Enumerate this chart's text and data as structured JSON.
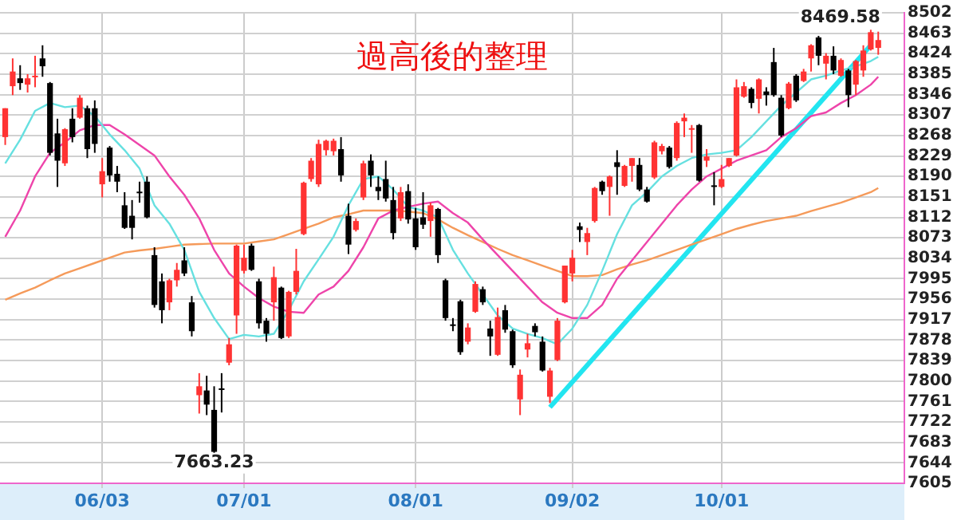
{
  "chart_data": {
    "type": "candlestick",
    "title": "過高後的整理",
    "categories": [
      null,
      null,
      null,
      null,
      null,
      null,
      null,
      null,
      null,
      null,
      null,
      null,
      null,
      "06/03",
      null,
      null,
      null,
      null,
      null,
      null,
      null,
      null,
      null,
      null,
      null,
      null,
      null,
      null,
      null,
      null,
      null,
      null,
      "07/01",
      null,
      null,
      null,
      null,
      null,
      null,
      null,
      null,
      null,
      null,
      null,
      null,
      null,
      null,
      null,
      null,
      null,
      null,
      null,
      null,
      null,
      null,
      "08/01",
      null,
      null,
      null,
      null,
      null,
      null,
      null,
      null,
      null,
      null,
      null,
      null,
      null,
      null,
      null,
      null,
      null,
      null,
      null,
      null,
      "09/02",
      null,
      null,
      null,
      null,
      null,
      null,
      null,
      null,
      null,
      null,
      null,
      null,
      null,
      null,
      null,
      null,
      null,
      null,
      null,
      "10/01",
      null,
      null,
      null,
      null,
      null,
      null,
      null,
      null,
      null,
      null,
      null,
      null,
      null,
      null,
      null,
      null,
      null,
      null,
      null,
      null,
      null
    ],
    "ohlc": [
      [
        8265,
        8320,
        8250,
        8320
      ],
      [
        8362,
        8415,
        8345,
        8390
      ],
      [
        8377,
        8402,
        8355,
        8368
      ],
      [
        8365,
        8385,
        8350,
        8377
      ],
      [
        8379,
        8420,
        8360,
        8382
      ],
      [
        8415,
        8440,
        8380,
        8400
      ],
      [
        8368,
        8370,
        8230,
        8235
      ],
      [
        8272,
        8300,
        8170,
        8220
      ],
      [
        8215,
        8282,
        8210,
        8280
      ],
      [
        8300,
        8320,
        8255,
        8265
      ],
      [
        8302,
        8345,
        8300,
        8340
      ],
      [
        8320,
        8325,
        8225,
        8242
      ],
      [
        8320,
        8335,
        8235,
        8252
      ],
      [
        8175,
        8225,
        8150,
        8200
      ],
      [
        8245,
        8248,
        8180,
        8192
      ],
      [
        8195,
        8210,
        8160,
        8180
      ],
      [
        8135,
        8160,
        8090,
        8092
      ],
      [
        8115,
        8145,
        8070,
        8092
      ],
      [
        8161,
        8180,
        8140,
        8159
      ],
      [
        8180,
        8190,
        8110,
        8112
      ],
      [
        8040,
        8055,
        7940,
        7945
      ],
      [
        7990,
        8005,
        7910,
        7935
      ],
      [
        7950,
        7995,
        7935,
        7992
      ],
      [
        7992,
        8025,
        7980,
        8012
      ],
      [
        8030,
        8055,
        8000,
        8005
      ],
      [
        7950,
        7962,
        7885,
        7895
      ],
      [
        7773,
        7815,
        7738,
        7790
      ],
      [
        7782,
        7810,
        7735,
        7755
      ],
      [
        7745,
        7790,
        7663.23,
        7665
      ],
      [
        7786,
        7815,
        7740,
        7784
      ],
      [
        7835,
        7882,
        7830,
        7870
      ],
      [
        7925,
        8060,
        7890,
        8058
      ],
      [
        8010,
        8060,
        8005,
        8035
      ],
      [
        8058,
        8062,
        8010,
        8012
      ],
      [
        7990,
        7995,
        7900,
        7910
      ],
      [
        7915,
        7920,
        7875,
        7890
      ],
      [
        7950,
        8018,
        7915,
        7998
      ],
      [
        7978,
        7980,
        7880,
        7882
      ],
      [
        7885,
        7972,
        7882,
        7970
      ],
      [
        7970,
        8052,
        7965,
        8010
      ],
      [
        8080,
        8180,
        8078,
        8178
      ],
      [
        8185,
        8225,
        8180,
        8220
      ],
      [
        8175,
        8260,
        8170,
        8252
      ],
      [
        8240,
        8260,
        8230,
        8258
      ],
      [
        8238,
        8262,
        8230,
        8258
      ],
      [
        8242,
        8265,
        8180,
        8192
      ],
      [
        8115,
        8138,
        8042,
        8060
      ],
      [
        8088,
        8110,
        8085,
        8105
      ],
      [
        8150,
        8220,
        8145,
        8215
      ],
      [
        8220,
        8232,
        8170,
        8192
      ],
      [
        8170,
        8190,
        8145,
        8162
      ],
      [
        8185,
        8220,
        8142,
        8148
      ],
      [
        8145,
        8170,
        8070,
        8082
      ],
      [
        8110,
        8170,
        8105,
        8160
      ],
      [
        8162,
        8175,
        8100,
        8108
      ],
      [
        8110,
        8130,
        8050,
        8055
      ],
      [
        8112,
        8160,
        8090,
        8098
      ],
      [
        8105,
        8140,
        8075,
        8135
      ],
      [
        8128,
        8130,
        8025,
        8040
      ],
      [
        7992,
        7995,
        7915,
        7920
      ],
      [
        7908,
        7920,
        7895,
        7906
      ],
      [
        7952,
        7955,
        7850,
        7855
      ],
      [
        7875,
        7910,
        7870,
        7902
      ],
      [
        7932,
        7990,
        7930,
        7985
      ],
      [
        7975,
        7980,
        7945,
        7950
      ],
      [
        7900,
        7915,
        7848,
        7885
      ],
      [
        7850,
        7940,
        7848,
        7922
      ],
      [
        7935,
        7945,
        7892,
        7898
      ],
      [
        7895,
        7898,
        7825,
        7830
      ],
      [
        7765,
        7822,
        7735,
        7812
      ],
      [
        7860,
        7890,
        7845,
        7872
      ],
      [
        7905,
        7910,
        7885,
        7893
      ],
      [
        7875,
        7885,
        7818,
        7820
      ],
      [
        7770,
        7825,
        7758,
        7820
      ],
      [
        7840,
        7920,
        7838,
        7915
      ],
      [
        7950,
        8020,
        7948,
        8020
      ],
      [
        8005,
        8050,
        7990,
        8035
      ],
      [
        8095,
        8102,
        8065,
        8088
      ],
      [
        8065,
        8092,
        8040,
        8082
      ],
      [
        8105,
        8170,
        8102,
        8168
      ],
      [
        8180,
        8182,
        8155,
        8162
      ],
      [
        8170,
        8192,
        8115,
        8190
      ],
      [
        8217,
        8240,
        8155,
        8208
      ],
      [
        8172,
        8212,
        8170,
        8210
      ],
      [
        8210,
        8225,
        8180,
        8225
      ],
      [
        8212,
        8225,
        8162,
        8165
      ],
      [
        8165,
        8170,
        8140,
        8142
      ],
      [
        8188,
        8258,
        8185,
        8255
      ],
      [
        8238,
        8252,
        8232,
        8248
      ],
      [
        8245,
        8248,
        8205,
        8208
      ],
      [
        8225,
        8295,
        8220,
        8292
      ],
      [
        8295,
        8310,
        8265,
        8302
      ],
      [
        8280,
        8288,
        8235,
        8282
      ],
      [
        8288,
        8290,
        8180,
        8182
      ],
      [
        8220,
        8242,
        8208,
        8228
      ],
      [
        8173,
        8198,
        8135,
        8171
      ],
      [
        8170,
        8212,
        8168,
        8185
      ],
      [
        8210,
        8225,
        8208,
        8225
      ],
      [
        8230,
        8375,
        8228,
        8360
      ],
      [
        8342,
        8370,
        8340,
        8362
      ],
      [
        8357,
        8360,
        8320,
        8330
      ],
      [
        8338,
        8377,
        8310,
        8375
      ],
      [
        8352,
        8360,
        8325,
        8345
      ],
      [
        8408,
        8435,
        8342,
        8345
      ],
      [
        8340,
        8345,
        8265,
        8268
      ],
      [
        8320,
        8370,
        8318,
        8367
      ],
      [
        8382,
        8385,
        8332,
        8335
      ],
      [
        8372,
        8395,
        8370,
        8390
      ],
      [
        8415,
        8442,
        8390,
        8440
      ],
      [
        8455,
        8458,
        8402,
        8420
      ],
      [
        8405,
        8425,
        8375,
        8420
      ],
      [
        8420,
        8438,
        8385,
        8392
      ],
      [
        8382,
        8415,
        8380,
        8412
      ],
      [
        8392,
        8395,
        8322,
        8345
      ],
      [
        8365,
        8412,
        8345,
        8410
      ],
      [
        8392,
        8440,
        8380,
        8430
      ],
      [
        8432,
        8469.58,
        8430,
        8465
      ],
      [
        8435,
        8466,
        8422,
        8450
      ]
    ],
    "colors": [
      "#ff3333",
      "#ff3333",
      "#000000",
      "#ff3333",
      "#ff3333",
      "#000000",
      "#000000",
      "#000000",
      "#ff3333",
      "#000000",
      "#ff3333",
      "#000000",
      "#000000",
      "#ff3333",
      "#000000",
      "#000000",
      "#000000",
      "#000000",
      "#000000",
      "#000000",
      "#000000",
      "#000000",
      "#ff3333",
      "#ff3333",
      "#000000",
      "#000000",
      "#ff3333",
      "#000000",
      "#000000",
      "#000000",
      "#ff3333",
      "#ff3333",
      "#ff3333",
      "#000000",
      "#000000",
      "#000000",
      "#ff3333",
      "#000000",
      "#ff3333",
      "#ff3333",
      "#ff3333",
      "#ff3333",
      "#ff3333",
      "#ff3333",
      "#ff3333",
      "#000000",
      "#000000",
      "#ff3333",
      "#ff3333",
      "#000000",
      "#000000",
      "#000000",
      "#000000",
      "#ff3333",
      "#000000",
      "#000000",
      "#000000",
      "#ff3333",
      "#000000",
      "#000000",
      "#000000",
      "#000000",
      "#ff3333",
      "#ff3333",
      "#000000",
      "#000000",
      "#ff3333",
      "#000000",
      "#000000",
      "#ff3333",
      "#ff3333",
      "#000000",
      "#000000",
      "#ff3333",
      "#ff3333",
      "#ff3333",
      "#ff3333",
      "#000000",
      "#ff3333",
      "#ff3333",
      "#000000",
      "#ff3333",
      "#000000",
      "#ff3333",
      "#ff3333",
      "#000000",
      "#000000",
      "#ff3333",
      "#ff3333",
      "#000000",
      "#ff3333",
      "#ff3333",
      "#ff3333",
      "#000000",
      "#ff3333",
      "#000000",
      "#ff3333",
      "#ff3333",
      "#ff3333",
      "#ff3333",
      "#000000",
      "#ff3333",
      "#000000",
      "#000000",
      "#000000",
      "#ff3333",
      "#000000",
      "#ff3333",
      "#ff3333",
      "#000000",
      "#ff3333",
      "#000000",
      "#ff3333",
      "#000000",
      "#ff3333",
      "#ff3333",
      "#ff3333",
      "#ff3333"
    ],
    "series": [
      {
        "type": "line",
        "color": "#66e0e0",
        "values": [
          8215,
          null,
          8260,
          null,
          8315,
          null,
          8330,
          null,
          8322,
          null,
          8325,
          null,
          8305,
          null,
          8270,
          null,
          8240,
          null,
          8205,
          null,
          8135,
          null,
          8100,
          null,
          8050,
          null,
          7970,
          null,
          7920,
          null,
          7880,
          null,
          7888,
          null,
          7885,
          null,
          7890,
          null,
          7935,
          null,
          7990,
          null,
          8032,
          null,
          8075,
          null,
          8135,
          null,
          8185,
          null,
          8190,
          null,
          8165,
          null,
          8132,
          null,
          8125,
          null,
          8112,
          null,
          8050,
          null,
          8005,
          null,
          7965,
          null,
          7925,
          null,
          7900,
          null,
          7890,
          null,
          7882,
          null,
          7870,
          null,
          7900,
          null,
          7945,
          null,
          8010,
          null,
          8080,
          null,
          8135,
          null,
          8160,
          null,
          8190,
          null,
          8210,
          null,
          8225,
          null,
          8232,
          null,
          8235,
          null,
          8240,
          null,
          8265,
          null,
          8295,
          null,
          8325,
          null,
          8350,
          null,
          8375,
          null,
          8382,
          null,
          8392,
          null,
          8400,
          null,
          8410,
          8418
        ]
      },
      {
        "type": "line",
        "color": "#ee44aa",
        "values": [
          8075,
          null,
          8125,
          null,
          8190,
          null,
          8235,
          null,
          8255,
          null,
          8278,
          null,
          8288,
          null,
          8288,
          null,
          8270,
          null,
          8250,
          null,
          8230,
          null,
          8190,
          null,
          8155,
          null,
          8110,
          null,
          8050,
          null,
          8005,
          null,
          7980,
          null,
          7958,
          null,
          7942,
          null,
          7932,
          null,
          7930,
          null,
          7965,
          null,
          7980,
          null,
          8010,
          null,
          8055,
          null,
          8110,
          null,
          8125,
          null,
          8132,
          null,
          8138,
          null,
          8142,
          null,
          8120,
          null,
          8102,
          null,
          8070,
          null,
          8040,
          null,
          8010,
          null,
          7980,
          null,
          7950,
          null,
          7930,
          null,
          7920,
          null,
          7920,
          null,
          7945,
          null,
          7995,
          null,
          8030,
          null,
          8065,
          null,
          8100,
          null,
          8135,
          null,
          8165,
          null,
          8190,
          null,
          8205,
          null,
          8220,
          null,
          8230,
          null,
          8240,
          null,
          8265,
          null,
          8282,
          null,
          8305,
          null,
          8312,
          null,
          8330,
          null,
          8345,
          null,
          8365,
          8380
        ]
      },
      {
        "type": "line",
        "color": "#f59a5a",
        "values": [
          7955,
          null,
          7967,
          null,
          7978,
          null,
          7992,
          null,
          8005,
          null,
          8015,
          null,
          8025,
          null,
          8035,
          null,
          8045,
          null,
          8049,
          null,
          8052,
          null,
          8056,
          null,
          8060,
          null,
          8061,
          null,
          8062,
          null,
          8062,
          null,
          8062,
          null,
          8066,
          null,
          8070,
          null,
          8080,
          null,
          8090,
          null,
          8100,
          null,
          8112,
          null,
          8118,
          null,
          8125,
          null,
          8125,
          null,
          8125,
          null,
          8123,
          null,
          8120,
          null,
          8108,
          null,
          8092,
          null,
          8078,
          null,
          8065,
          null,
          8052,
          null,
          8040,
          null,
          8030,
          null,
          8020,
          null,
          8010,
          null,
          8000,
          null,
          8000,
          null,
          8002,
          null,
          8013,
          null,
          8022,
          null,
          8030,
          null,
          8040,
          null,
          8050,
          null,
          8060,
          null,
          8070,
          null,
          8080,
          null,
          8090,
          null,
          8098,
          null,
          8105,
          null,
          8110,
          null,
          8115,
          null,
          8124,
          null,
          8132,
          null,
          8140,
          null,
          8150,
          null,
          8160,
          8168
        ]
      },
      {
        "type": "line",
        "color": "#22e5f0",
        "values": [
          null,
          null,
          null,
          null,
          null,
          null,
          null,
          null,
          null,
          null,
          null,
          null,
          null,
          null,
          null,
          null,
          null,
          null,
          null,
          null,
          null,
          null,
          null,
          null,
          null,
          null,
          null,
          null,
          null,
          null,
          null,
          null,
          null,
          null,
          null,
          null,
          null,
          null,
          null,
          null,
          null,
          null,
          null,
          null,
          null,
          null,
          null,
          null,
          null,
          null,
          null,
          null,
          null,
          null,
          null,
          null,
          null,
          null,
          null,
          null,
          null,
          null,
          null,
          null,
          null,
          null,
          null,
          null,
          null,
          null,
          null,
          null,
          null,
          7750,
          null,
          null,
          null,
          null,
          null,
          null,
          null,
          null,
          null,
          null,
          null,
          null,
          null,
          null,
          null,
          null,
          null,
          null,
          null,
          null,
          null,
          null,
          null,
          null,
          null,
          null,
          null,
          null,
          null,
          null,
          null,
          null,
          null,
          null,
          null,
          null,
          null,
          null,
          null,
          null,
          null,
          null,
          8440,
          null
        ]
      }
    ],
    "annotations": [
      {
        "text": "7663.23",
        "y": 7663.23
      },
      "8469.58"
    ],
    "ylim": [
      7605,
      8502
    ],
    "yticks": [
      7605,
      7644,
      7683,
      7722,
      7761,
      7800,
      7839,
      7878,
      7917,
      7956,
      7995,
      8034,
      8073,
      8112,
      8151,
      8190,
      8229,
      8268,
      8307,
      8346,
      8385,
      8424,
      8463,
      8502
    ],
    "grid": true,
    "legend": false
  }
}
